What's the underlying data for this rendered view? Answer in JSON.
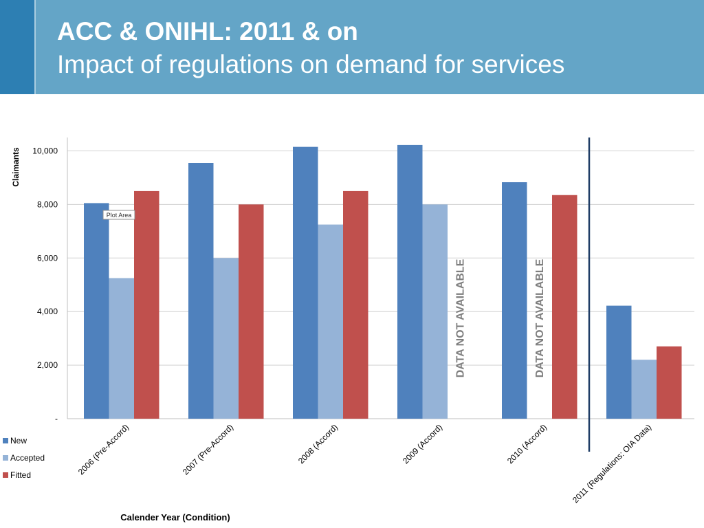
{
  "slide": {
    "title": "ACC & ONIHL: 2011 & on",
    "subtitle": "Impact of regulations on demand for services"
  },
  "colors": {
    "header_bg": "#64a5c7",
    "header_accent": "#2d7fb3",
    "new": "#4f81bd",
    "accepted": "#95b3d7",
    "fitted": "#c0504d",
    "divider_line": "#1f3d66",
    "na_text": "#7f7f7f"
  },
  "chart_data": {
    "type": "bar",
    "title": "",
    "xlabel": "Calender Year (Condition)",
    "ylabel": "Claimants",
    "ylim": [
      0,
      10500
    ],
    "yticks": [
      0,
      2000,
      4000,
      6000,
      8000,
      10000
    ],
    "ytick_labels": [
      "-",
      "2,000",
      "4,000",
      "6,000",
      "8,000",
      "10,000"
    ],
    "grid": true,
    "legend_position": "bottom-left",
    "categories": [
      "2006 (Pre-Accord)",
      "2007 (Pre-Accord)",
      "2008 (Accord)",
      "2009 (Accord)",
      "2010 (Accord)",
      "2011 (Regulations: OIA Data)"
    ],
    "series": [
      {
        "name": "New",
        "color": "#4f81bd",
        "values": [
          8050,
          9550,
          10150,
          10220,
          8830,
          4220
        ]
      },
      {
        "name": "Accepted",
        "color": "#95b3d7",
        "values": [
          5250,
          6000,
          7250,
          8000,
          null,
          2200
        ]
      },
      {
        "name": "Fitted",
        "color": "#c0504d",
        "values": [
          8500,
          8000,
          8500,
          null,
          8350,
          2700
        ]
      }
    ],
    "annotations": [
      {
        "text": "DATA NOT AVAILABLE",
        "category_index": 3,
        "series": "Fitted"
      },
      {
        "text": "DATA NOT AVAILABLE",
        "category_index": 4,
        "series": "Accepted"
      },
      {
        "text": "Plot Area",
        "type": "tooltip"
      }
    ],
    "divider_before_category_index": 5
  }
}
